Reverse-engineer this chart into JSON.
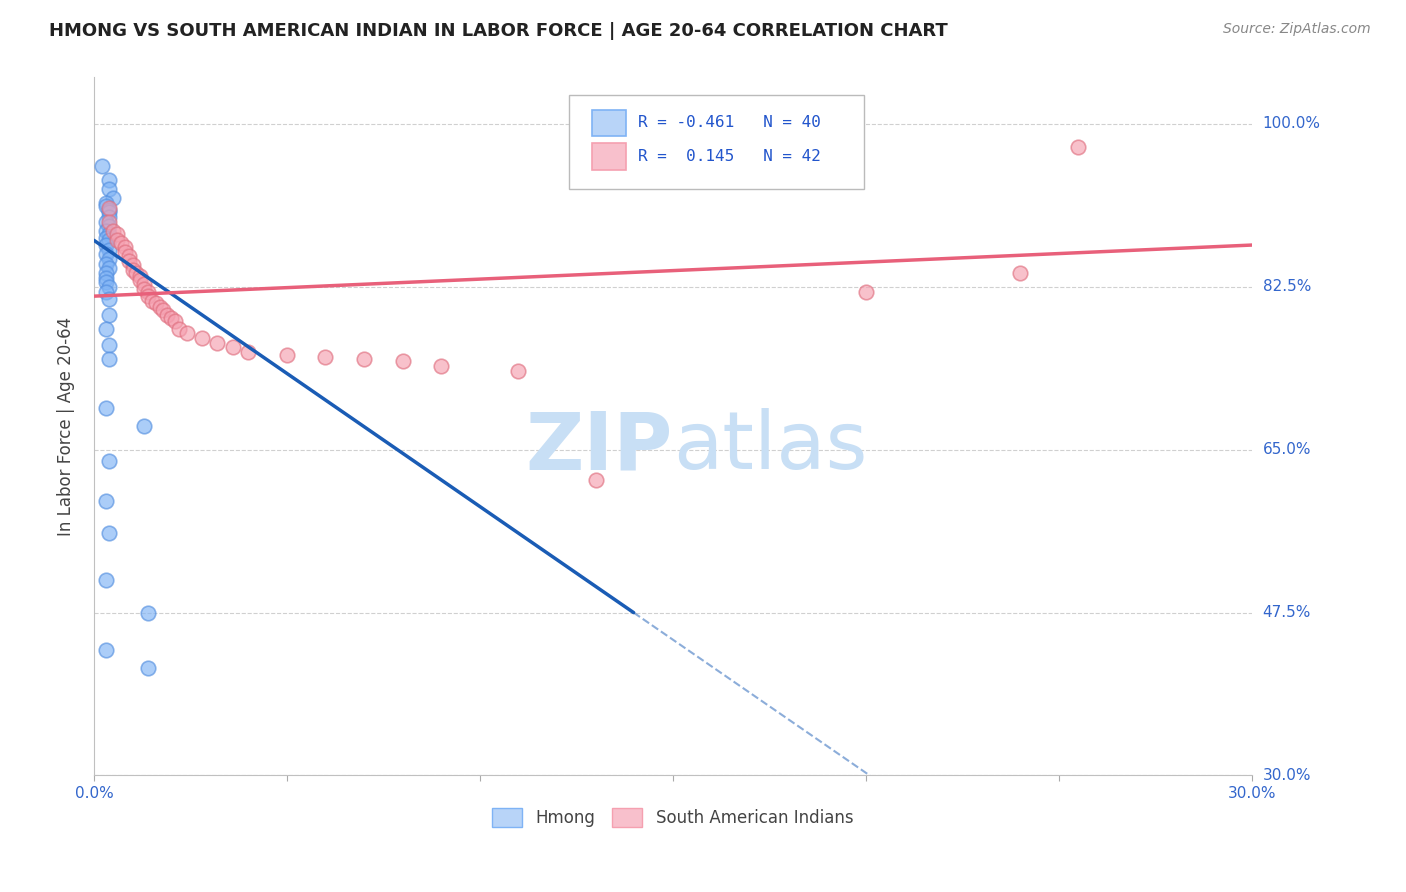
{
  "title": "HMONG VS SOUTH AMERICAN INDIAN IN LABOR FORCE | AGE 20-64 CORRELATION CHART",
  "source": "Source: ZipAtlas.com",
  "ylabel": "In Labor Force | Age 20-64",
  "xlim": [
    0.0,
    0.3
  ],
  "ylim": [
    0.3,
    1.05
  ],
  "yticks": [
    0.3,
    0.475,
    0.65,
    0.825,
    1.0
  ],
  "yticklabels": [
    "30.0%",
    "47.5%",
    "65.0%",
    "82.5%",
    "100.0%"
  ],
  "xtick_vals": [
    0.0,
    0.05,
    0.1,
    0.15,
    0.2,
    0.25,
    0.3
  ],
  "hmong_r": -0.461,
  "hmong_n": 40,
  "sai_r": 0.145,
  "sai_n": 42,
  "hmong_color": "#7fb3f5",
  "hmong_edge": "#5590e0",
  "sai_color": "#f5a0b0",
  "sai_edge": "#e07080",
  "hmong_line_color": "#1a5cb5",
  "sai_line_color": "#e8607a",
  "watermark_zip": "ZIP",
  "watermark_atlas": "atlas",
  "watermark_color": "#c8dff5",
  "legend_blue_face": "#b8d4f8",
  "legend_blue_edge": "#7fb3f5",
  "legend_pink_face": "#f8c0cc",
  "legend_pink_edge": "#f5a0b0",
  "hmong_x": [
    0.002,
    0.004,
    0.004,
    0.005,
    0.003,
    0.003,
    0.004,
    0.004,
    0.004,
    0.003,
    0.004,
    0.003,
    0.004,
    0.003,
    0.004,
    0.003,
    0.004,
    0.003,
    0.004,
    0.003,
    0.004,
    0.003,
    0.003,
    0.003,
    0.004,
    0.003,
    0.004,
    0.004,
    0.003,
    0.004,
    0.004,
    0.003,
    0.013,
    0.004,
    0.003,
    0.004,
    0.003,
    0.014,
    0.003,
    0.014
  ],
  "hmong_y": [
    0.955,
    0.94,
    0.93,
    0.92,
    0.915,
    0.912,
    0.908,
    0.905,
    0.9,
    0.895,
    0.89,
    0.885,
    0.882,
    0.878,
    0.875,
    0.87,
    0.865,
    0.86,
    0.855,
    0.85,
    0.845,
    0.84,
    0.835,
    0.83,
    0.825,
    0.82,
    0.812,
    0.795,
    0.78,
    0.762,
    0.748,
    0.695,
    0.675,
    0.638,
    0.595,
    0.56,
    0.51,
    0.475,
    0.435,
    0.415
  ],
  "sai_x": [
    0.004,
    0.004,
    0.005,
    0.006,
    0.006,
    0.007,
    0.008,
    0.008,
    0.009,
    0.009,
    0.01,
    0.01,
    0.011,
    0.012,
    0.012,
    0.013,
    0.013,
    0.014,
    0.014,
    0.015,
    0.016,
    0.017,
    0.018,
    0.019,
    0.02,
    0.021,
    0.022,
    0.024,
    0.028,
    0.032,
    0.036,
    0.04,
    0.05,
    0.06,
    0.07,
    0.08,
    0.09,
    0.11,
    0.13,
    0.2,
    0.24,
    0.255
  ],
  "sai_y": [
    0.91,
    0.895,
    0.885,
    0.882,
    0.875,
    0.872,
    0.868,
    0.862,
    0.858,
    0.853,
    0.848,
    0.843,
    0.84,
    0.837,
    0.832,
    0.828,
    0.823,
    0.82,
    0.815,
    0.81,
    0.808,
    0.803,
    0.8,
    0.795,
    0.792,
    0.788,
    0.78,
    0.775,
    0.77,
    0.765,
    0.76,
    0.755,
    0.752,
    0.75,
    0.748,
    0.745,
    0.74,
    0.735,
    0.618,
    0.82,
    0.84,
    0.975
  ]
}
